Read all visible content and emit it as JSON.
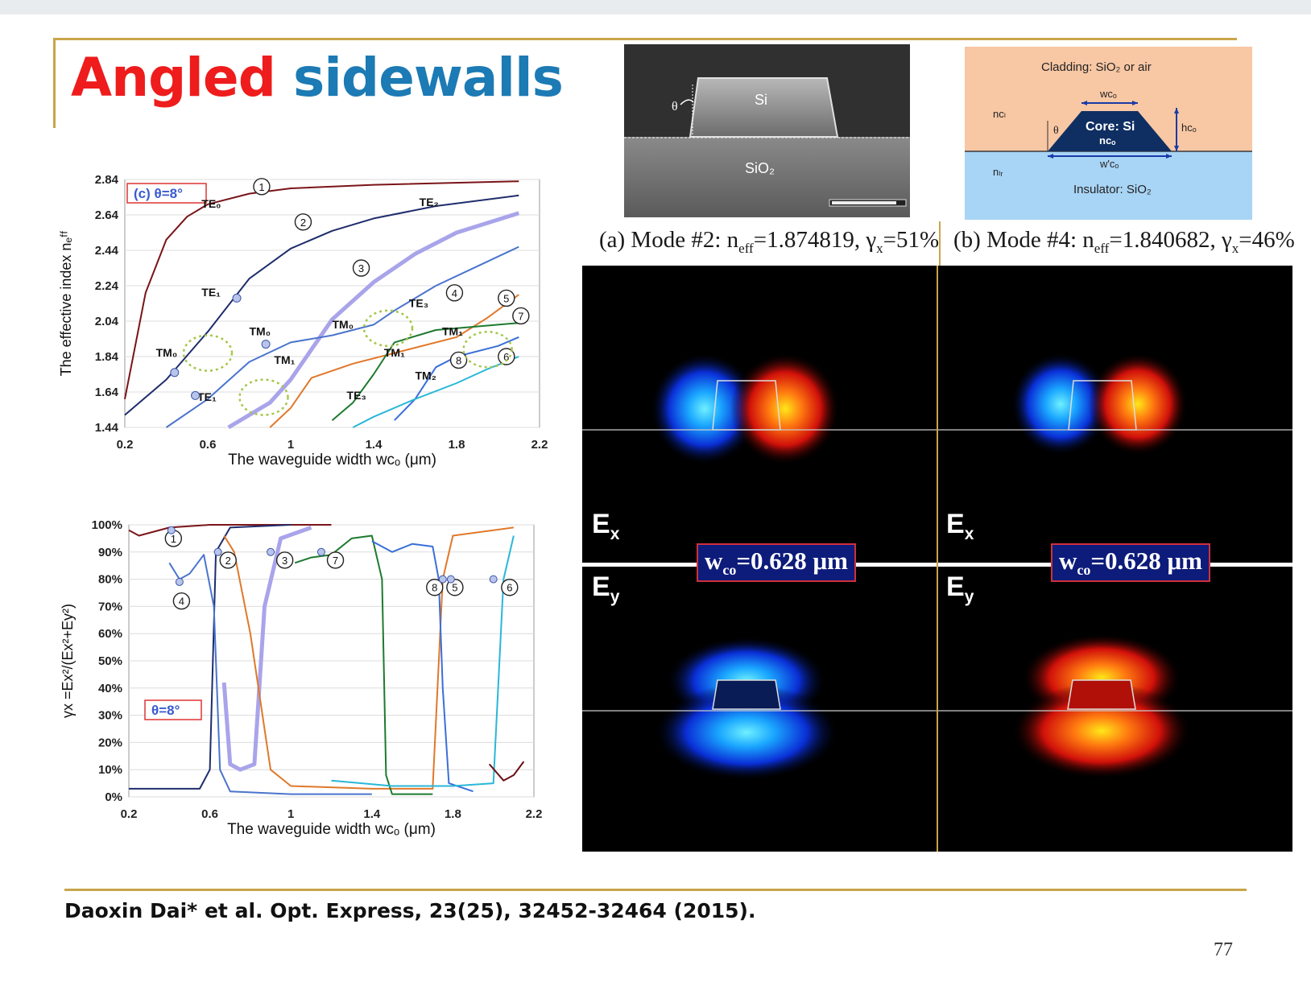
{
  "title": {
    "word1": "Angled",
    "word2": "sidewalls"
  },
  "sem": {
    "si": "Si",
    "sio2": "SiO₂",
    "theta": "θ"
  },
  "xsec": {
    "cladding": "Cladding: SiO₂ or air",
    "wco": "wᴄₒ",
    "ncl": "nᴄₗ",
    "nbr": "nₗᵣ",
    "core": "Core: Si",
    "nco": "nᴄₒ",
    "hco": "hᴄₒ",
    "wco_bottom": "w'ᴄₒ",
    "insulator": "Insulator: SiO₂",
    "theta": "θ"
  },
  "captions": {
    "a": {
      "prefix": "(a) Mode #2: n",
      "sub1": "eff",
      "mid": "=1.874819, γ",
      "sub2": "x",
      "suffix": "=51%"
    },
    "b": {
      "prefix": "(b) Mode #4: n",
      "sub1": "eff",
      "mid": "=1.840682, γ",
      "sub2": "x",
      "suffix": "=46%"
    }
  },
  "fields": {
    "ex": "E",
    "ex_sub": "x",
    "ey": "E",
    "ey_sub": "y",
    "wco_label": "w",
    "wco_sub": "co",
    "wco_value": "=0.628 μm"
  },
  "colors": {
    "gold": "#c9a54a",
    "red_title": "#ee1c1c",
    "blue_title": "#1c7ab4",
    "box_fill": "#0d1b7a",
    "box_border": "#d0303a"
  },
  "chart_data": [
    {
      "type": "line",
      "title": "(c) θ=8°",
      "xlabel": "The waveguide width wᴄₒ (μm)",
      "ylabel": "The effective index nₑᶠᶠ",
      "xlim": [
        0.2,
        2.2
      ],
      "ylim": [
        1.44,
        2.84
      ],
      "xticks": [
        "0.2",
        "0.6",
        "1",
        "1.4",
        "1.8",
        "2.2"
      ],
      "yticks": [
        "1.44",
        "1.64",
        "1.84",
        "2.04",
        "2.24",
        "2.44",
        "2.64",
        "2.84"
      ],
      "grid": true,
      "series": [
        {
          "color": "#7a1418",
          "points": [
            [
              0.2,
              1.6
            ],
            [
              0.3,
              2.2
            ],
            [
              0.4,
              2.5
            ],
            [
              0.5,
              2.63
            ],
            [
              0.6,
              2.7
            ],
            [
              0.8,
              2.76
            ],
            [
              1.0,
              2.79
            ],
            [
              1.4,
              2.81
            ],
            [
              2.1,
              2.83
            ]
          ]
        },
        {
          "color": "#1e2c6c",
          "points": [
            [
              0.2,
              1.51
            ],
            [
              0.4,
              1.71
            ],
            [
              0.6,
              1.98
            ],
            [
              0.8,
              2.28
            ],
            [
              1.0,
              2.45
            ],
            [
              1.2,
              2.55
            ],
            [
              1.4,
              2.62
            ],
            [
              1.7,
              2.69
            ],
            [
              2.1,
              2.75
            ]
          ]
        },
        {
          "color": "#a9a4ea",
          "points": [
            [
              0.7,
              1.44
            ],
            [
              0.9,
              1.58
            ],
            [
              1.0,
              1.71
            ],
            [
              1.2,
              2.05
            ],
            [
              1.4,
              2.26
            ],
            [
              1.6,
              2.42
            ],
            [
              1.8,
              2.54
            ],
            [
              2.1,
              2.65
            ]
          ]
        },
        {
          "color": "#4a74cc",
          "points": [
            [
              0.4,
              1.44
            ],
            [
              0.6,
              1.6
            ],
            [
              0.8,
              1.81
            ],
            [
              1.0,
              1.92
            ],
            [
              1.2,
              1.96
            ],
            [
              1.4,
              2.02
            ],
            [
              1.5,
              2.1
            ],
            [
              1.7,
              2.24
            ],
            [
              1.9,
              2.35
            ],
            [
              2.1,
              2.46
            ]
          ]
        },
        {
          "color": "#e0782a",
          "points": [
            [
              0.9,
              1.44
            ],
            [
              1.0,
              1.55
            ],
            [
              1.1,
              1.72
            ],
            [
              1.3,
              1.8
            ],
            [
              1.5,
              1.86
            ],
            [
              1.8,
              1.95
            ],
            [
              1.95,
              2.06
            ],
            [
              2.1,
              2.19
            ]
          ]
        },
        {
          "color": "#1d7a2e",
          "points": [
            [
              1.2,
              1.48
            ],
            [
              1.3,
              1.58
            ],
            [
              1.4,
              1.74
            ],
            [
              1.5,
              1.92
            ],
            [
              1.7,
              1.99
            ],
            [
              2.1,
              2.03
            ]
          ]
        },
        {
          "color": "#3a6fd8",
          "points": [
            [
              1.5,
              1.48
            ],
            [
              1.6,
              1.6
            ],
            [
              1.7,
              1.78
            ],
            [
              1.8,
              1.84
            ],
            [
              2.0,
              1.9
            ],
            [
              2.1,
              1.95
            ]
          ]
        },
        {
          "color": "#29b7d8",
          "points": [
            [
              1.3,
              1.44
            ],
            [
              1.4,
              1.5
            ],
            [
              1.6,
              1.6
            ],
            [
              1.8,
              1.69
            ],
            [
              1.95,
              1.77
            ],
            [
              2.1,
              1.84
            ]
          ]
        }
      ],
      "labels": [
        "TE₀",
        "TE₁",
        "TE₂",
        "TE₃",
        "TM₀",
        "TM₀",
        "TM₀",
        "TM₁",
        "TM₁",
        "TM₁",
        "TM₂",
        "TE₁",
        "TE₃"
      ],
      "markers": [
        "1",
        "2",
        "3",
        "4",
        "5",
        "6",
        "7",
        "8"
      ]
    },
    {
      "type": "line",
      "title": "θ=8°",
      "xlabel": "The waveguide width wᴄₒ (μm)",
      "ylabel": "γx =Ex²/(Ex²+Ey²)",
      "xlim": [
        0.2,
        2.2
      ],
      "ylim": [
        0,
        100
      ],
      "xticks": [
        "0.2",
        "0.6",
        "1",
        "1.4",
        "1.8",
        "2.2"
      ],
      "yticks": [
        "0%",
        "10%",
        "20%",
        "30%",
        "40%",
        "50%",
        "60%",
        "70%",
        "80%",
        "90%",
        "100%"
      ],
      "grid": true,
      "series": [
        {
          "color": "#7a1418",
          "points": [
            [
              0.2,
              98
            ],
            [
              0.25,
              96
            ],
            [
              0.3,
              97
            ],
            [
              0.4,
              99
            ],
            [
              0.6,
              100
            ],
            [
              1.2,
              100
            ]
          ]
        },
        {
          "color": "#1e2c6c",
          "points": [
            [
              0.2,
              3
            ],
            [
              0.55,
              3
            ],
            [
              0.6,
              10
            ],
            [
              0.63,
              90
            ],
            [
              0.7,
              99
            ],
            [
              1.0,
              100
            ]
          ]
        },
        {
          "color": "#4a74cc",
          "points": [
            [
              0.4,
              86
            ],
            [
              0.45,
              80
            ],
            [
              0.5,
              82
            ],
            [
              0.57,
              89
            ],
            [
              0.62,
              70
            ],
            [
              0.65,
              10
            ],
            [
              0.7,
              2
            ],
            [
              1.0,
              1
            ],
            [
              1.4,
              1
            ]
          ]
        },
        {
          "color": "#a9a4ea",
          "points": [
            [
              0.67,
              42
            ],
            [
              0.7,
              12
            ],
            [
              0.75,
              10
            ],
            [
              0.82,
              12
            ],
            [
              0.87,
              70
            ],
            [
              0.95,
              95
            ],
            [
              1.1,
              99
            ]
          ]
        },
        {
          "color": "#e0782a",
          "points": [
            [
              0.67,
              96
            ],
            [
              0.72,
              90
            ],
            [
              0.8,
              60
            ],
            [
              0.9,
              10
            ],
            [
              1.0,
              4
            ],
            [
              1.4,
              3
            ],
            [
              1.7,
              3
            ],
            [
              1.75,
              80
            ],
            [
              1.8,
              96
            ],
            [
              2.1,
              99
            ]
          ]
        },
        {
          "color": "#1d7a2e",
          "points": [
            [
              1.02,
              86
            ],
            [
              1.1,
              88
            ],
            [
              1.2,
              89
            ],
            [
              1.3,
              95
            ],
            [
              1.4,
              96
            ],
            [
              1.45,
              80
            ],
            [
              1.47,
              8
            ],
            [
              1.5,
              1
            ],
            [
              1.7,
              1
            ]
          ]
        },
        {
          "color": "#3a6fd8",
          "points": [
            [
              1.4,
              94
            ],
            [
              1.5,
              90
            ],
            [
              1.6,
              93
            ],
            [
              1.7,
              92
            ],
            [
              1.73,
              80
            ],
            [
              1.75,
              40
            ],
            [
              1.78,
              5
            ],
            [
              1.9,
              2
            ]
          ]
        },
        {
          "color": "#29b7d8",
          "points": [
            [
              1.2,
              6
            ],
            [
              1.5,
              4
            ],
            [
              1.8,
              4
            ],
            [
              2.0,
              5
            ],
            [
              2.05,
              80
            ],
            [
              2.1,
              96
            ]
          ]
        },
        {
          "color": "#6a0f14",
          "points": [
            [
              1.98,
              12
            ],
            [
              2.05,
              6
            ],
            [
              2.1,
              8
            ],
            [
              2.15,
              13
            ]
          ]
        }
      ],
      "markers": [
        "1",
        "2",
        "3",
        "4",
        "5",
        "6",
        "7",
        "8"
      ]
    }
  ],
  "reference": "Daoxin Dai* et al. Opt. Express, 23(25), 32452-32464 (2015).",
  "page_number": "77"
}
